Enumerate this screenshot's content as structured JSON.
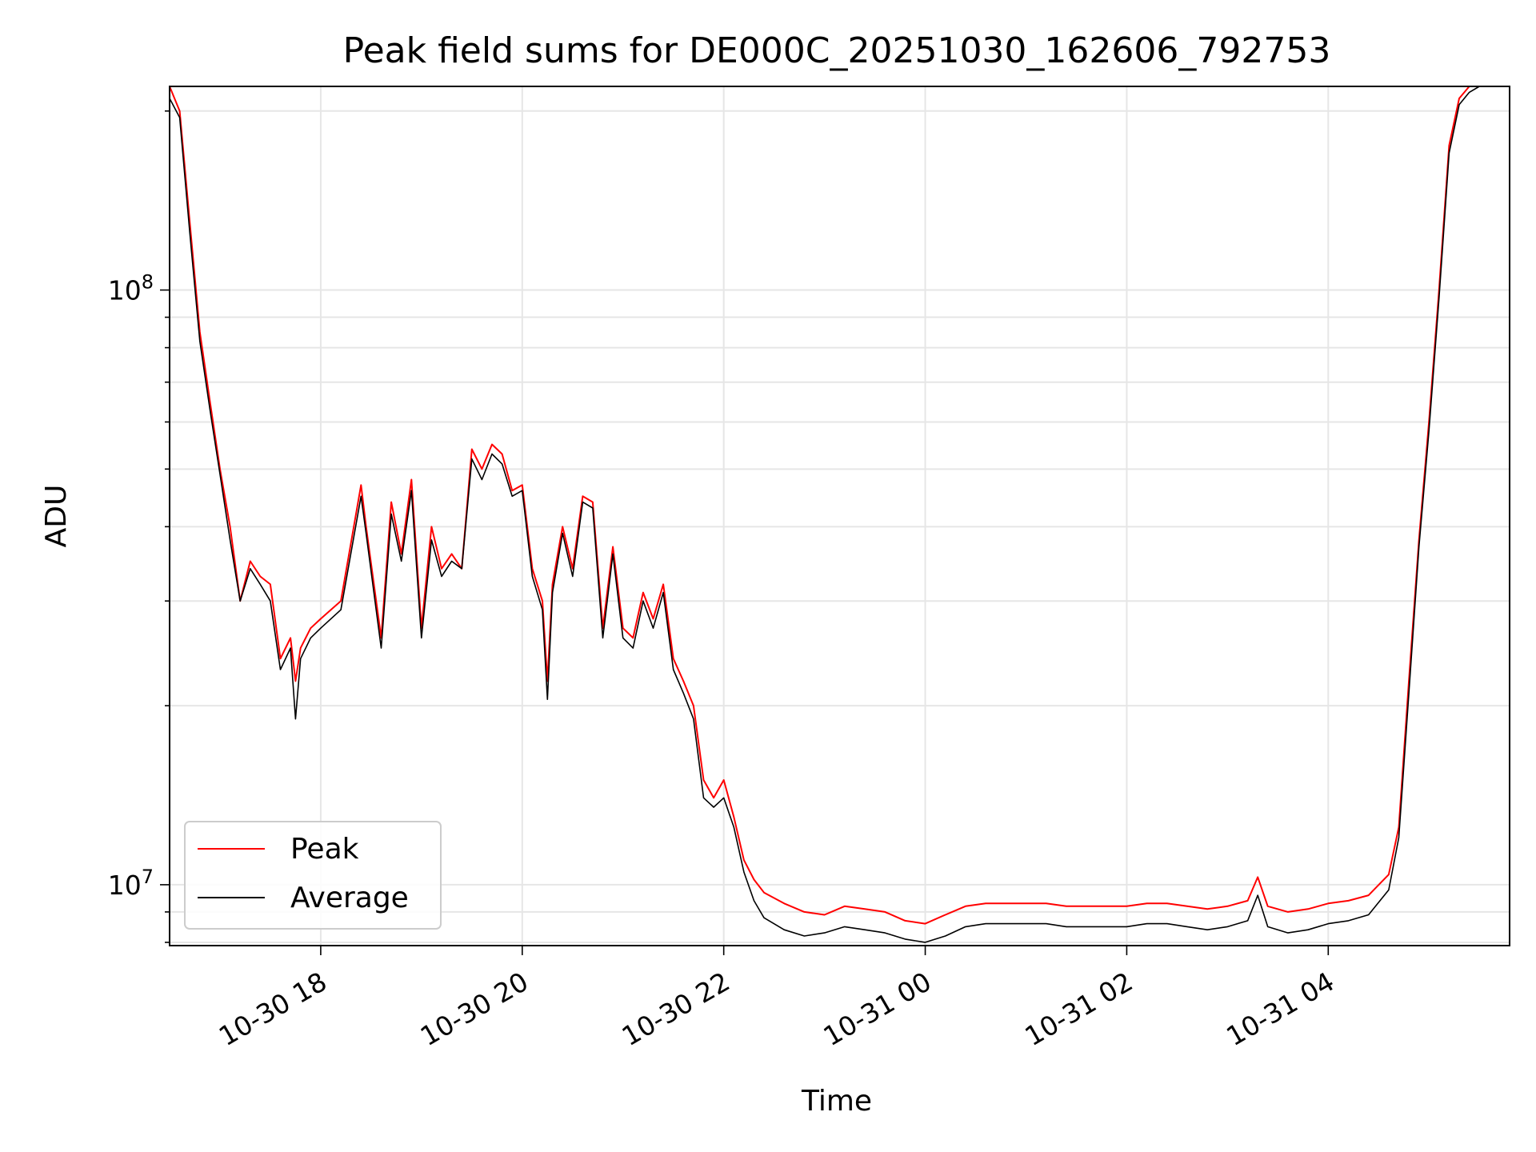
{
  "chart_data": {
    "type": "line",
    "title": "Peak field sums for DE000C_20251030_162606_792753",
    "xlabel": "Time",
    "ylabel": "ADU",
    "yscale": "log",
    "xlim": [
      16.5,
      29.8
    ],
    "ylim": [
      7900000,
      220000000
    ],
    "grid": true,
    "legend_position": "lower-left",
    "x_unit": "hours since 2025-10-30 00:00",
    "xticks": [
      {
        "value": 18,
        "label": "10-30 18"
      },
      {
        "value": 20,
        "label": "10-30 20"
      },
      {
        "value": 22,
        "label": "10-30 22"
      },
      {
        "value": 24,
        "label": "10-31 00"
      },
      {
        "value": 26,
        "label": "10-31 02"
      },
      {
        "value": 28,
        "label": "10-31 04"
      }
    ],
    "yticks": [
      {
        "value": 10000000,
        "base": "10",
        "exp": "7"
      },
      {
        "value": 100000000,
        "base": "10",
        "exp": "8"
      }
    ],
    "series": [
      {
        "name": "Peak",
        "color": "#ff0000",
        "x": [
          16.5,
          16.6,
          16.7,
          16.8,
          16.9,
          17.0,
          17.1,
          17.2,
          17.3,
          17.4,
          17.5,
          17.6,
          17.7,
          17.75,
          17.8,
          17.9,
          18.0,
          18.2,
          18.4,
          18.45,
          18.6,
          18.7,
          18.8,
          18.9,
          19.0,
          19.1,
          19.2,
          19.3,
          19.4,
          19.5,
          19.6,
          19.7,
          19.8,
          19.9,
          20.0,
          20.1,
          20.2,
          20.25,
          20.3,
          20.4,
          20.5,
          20.6,
          20.7,
          20.8,
          20.9,
          21.0,
          21.1,
          21.2,
          21.3,
          21.4,
          21.5,
          21.6,
          21.7,
          21.8,
          21.9,
          22.0,
          22.1,
          22.2,
          22.3,
          22.4,
          22.6,
          22.8,
          23.0,
          23.2,
          23.4,
          23.6,
          23.8,
          24.0,
          24.2,
          24.4,
          24.6,
          24.8,
          25.0,
          25.2,
          25.4,
          25.6,
          25.8,
          26.0,
          26.2,
          26.4,
          26.6,
          26.8,
          27.0,
          27.2,
          27.3,
          27.4,
          27.6,
          27.8,
          28.0,
          28.2,
          28.4,
          28.6,
          28.7,
          28.8,
          28.9,
          29.0,
          29.1,
          29.2,
          29.3,
          29.4,
          29.5,
          29.6,
          29.7,
          29.8
        ],
        "values": [
          220000000,
          200000000,
          130000000,
          85000000,
          65000000,
          50000000,
          40000000,
          30000000,
          35000000,
          33000000,
          32000000,
          24000000,
          26000000,
          22000000,
          25000000,
          27000000,
          28000000,
          30000000,
          47000000,
          40000000,
          26000000,
          44000000,
          36000000,
          48000000,
          27000000,
          40000000,
          34000000,
          36000000,
          34000000,
          54000000,
          50000000,
          55000000,
          53000000,
          46000000,
          47000000,
          34000000,
          30000000,
          22000000,
          32000000,
          40000000,
          34000000,
          45000000,
          44000000,
          27000000,
          37000000,
          27000000,
          26000000,
          31000000,
          28000000,
          32000000,
          24000000,
          22000000,
          20000000,
          15000000,
          14000000,
          15000000,
          13000000,
          11000000,
          10200000,
          9700000,
          9300000,
          9000000,
          8900000,
          9200000,
          9100000,
          9000000,
          8700000,
          8600000,
          8900000,
          9200000,
          9300000,
          9300000,
          9300000,
          9300000,
          9200000,
          9200000,
          9200000,
          9200000,
          9300000,
          9300000,
          9200000,
          9100000,
          9200000,
          9400000,
          10300000,
          9200000,
          9000000,
          9100000,
          9300000,
          9400000,
          9600000,
          10400000,
          12500000,
          22000000,
          38000000,
          60000000,
          100000000,
          175000000,
          210000000,
          220000000,
          220000000,
          220000000,
          220000000,
          220000000
        ]
      },
      {
        "name": "Average",
        "color": "#000000",
        "x": [
          16.5,
          16.6,
          16.7,
          16.8,
          16.9,
          17.0,
          17.1,
          17.2,
          17.3,
          17.4,
          17.5,
          17.6,
          17.7,
          17.75,
          17.8,
          17.9,
          18.0,
          18.2,
          18.4,
          18.45,
          18.6,
          18.7,
          18.8,
          18.9,
          19.0,
          19.1,
          19.2,
          19.3,
          19.4,
          19.5,
          19.6,
          19.7,
          19.8,
          19.9,
          20.0,
          20.1,
          20.2,
          20.25,
          20.3,
          20.4,
          20.5,
          20.6,
          20.7,
          20.8,
          20.9,
          21.0,
          21.1,
          21.2,
          21.3,
          21.4,
          21.5,
          21.6,
          21.7,
          21.8,
          21.9,
          22.0,
          22.1,
          22.2,
          22.3,
          22.4,
          22.6,
          22.8,
          23.0,
          23.2,
          23.4,
          23.6,
          23.8,
          24.0,
          24.2,
          24.4,
          24.6,
          24.8,
          25.0,
          25.2,
          25.4,
          25.6,
          25.8,
          26.0,
          26.2,
          26.4,
          26.6,
          26.8,
          27.0,
          27.2,
          27.3,
          27.4,
          27.6,
          27.8,
          28.0,
          28.2,
          28.4,
          28.6,
          28.7,
          28.8,
          28.9,
          29.0,
          29.1,
          29.2,
          29.3,
          29.4,
          29.5,
          29.6,
          29.7,
          29.8
        ],
        "values": [
          210000000,
          195000000,
          125000000,
          82000000,
          63000000,
          49000000,
          38000000,
          30000000,
          34000000,
          32000000,
          30000000,
          23000000,
          25000000,
          19000000,
          24000000,
          26000000,
          27000000,
          29000000,
          45000000,
          39000000,
          25000000,
          42000000,
          35000000,
          46000000,
          26000000,
          38000000,
          33000000,
          35000000,
          34000000,
          52000000,
          48000000,
          53000000,
          51000000,
          45000000,
          46000000,
          33000000,
          29000000,
          20500000,
          31000000,
          39000000,
          33000000,
          44000000,
          43000000,
          26000000,
          36000000,
          26000000,
          25000000,
          30000000,
          27000000,
          31000000,
          23000000,
          21000000,
          19000000,
          14000000,
          13500000,
          14000000,
          12500000,
          10500000,
          9400000,
          8800000,
          8400000,
          8200000,
          8300000,
          8500000,
          8400000,
          8300000,
          8100000,
          8000000,
          8200000,
          8500000,
          8600000,
          8600000,
          8600000,
          8600000,
          8500000,
          8500000,
          8500000,
          8500000,
          8600000,
          8600000,
          8500000,
          8400000,
          8500000,
          8700000,
          9600000,
          8500000,
          8300000,
          8400000,
          8600000,
          8700000,
          8900000,
          9800000,
          12000000,
          21000000,
          37000000,
          58000000,
          97000000,
          170000000,
          205000000,
          215000000,
          220000000,
          220000000,
          220000000,
          220000000
        ]
      }
    ]
  }
}
